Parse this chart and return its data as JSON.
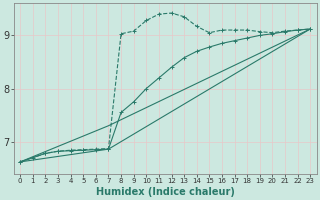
{
  "bg_color": "#cce8e0",
  "grid_color": "#b0d4cc",
  "line_color": "#2a7a6a",
  "xlabel": "Humidex (Indice chaleur)",
  "xlim": [
    -0.5,
    23.5
  ],
  "ylim": [
    6.4,
    9.6
  ],
  "yticks": [
    7,
    8,
    9
  ],
  "xticks": [
    0,
    1,
    2,
    3,
    4,
    5,
    6,
    7,
    8,
    9,
    10,
    11,
    12,
    13,
    14,
    15,
    16,
    17,
    18,
    19,
    20,
    21,
    22,
    23
  ],
  "series1_x": [
    0,
    1,
    2,
    3,
    4,
    5,
    6,
    7,
    8,
    9,
    10,
    11,
    12,
    13,
    14,
    15,
    16,
    17,
    18,
    19,
    20,
    21,
    22,
    23
  ],
  "series1_y": [
    6.62,
    6.7,
    6.78,
    6.82,
    6.84,
    6.85,
    6.86,
    6.87,
    9.03,
    9.08,
    9.28,
    9.4,
    9.42,
    9.35,
    9.17,
    9.05,
    9.1,
    9.1,
    9.1,
    9.07,
    9.05,
    9.08,
    9.1,
    9.12
  ],
  "series2_x": [
    0,
    2,
    3,
    4,
    5,
    6,
    7,
    8,
    9,
    10,
    11,
    12,
    13,
    14,
    15,
    16,
    17,
    18,
    19,
    20,
    21,
    22,
    23
  ],
  "series2_y": [
    6.62,
    6.78,
    6.82,
    6.83,
    6.84,
    6.85,
    6.86,
    7.55,
    7.75,
    8.0,
    8.2,
    8.4,
    8.58,
    8.7,
    8.78,
    8.85,
    8.9,
    8.95,
    9.0,
    9.03,
    9.07,
    9.1,
    9.12
  ],
  "series3_x": [
    0,
    7,
    23
  ],
  "series3_y": [
    6.62,
    6.86,
    9.12
  ],
  "series4_x": [
    0,
    7,
    23
  ],
  "series4_y": [
    6.62,
    7.3,
    9.12
  ],
  "tick_fontsize": 6,
  "xlabel_fontsize": 7
}
